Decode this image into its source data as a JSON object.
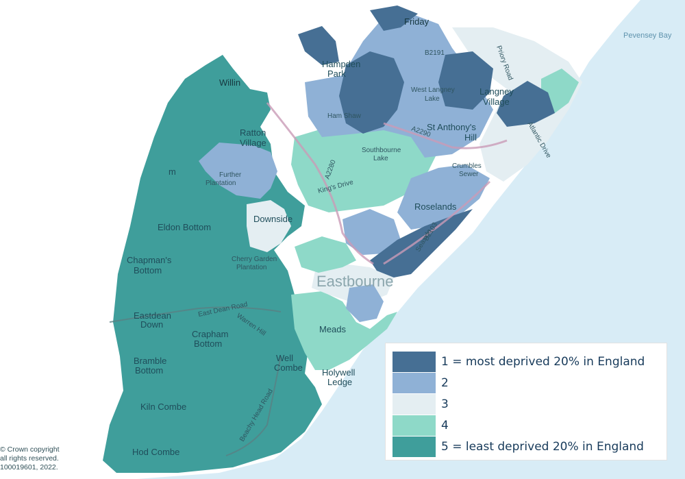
{
  "colors": {
    "q1": "#466f94",
    "q2": "#8fb1d6",
    "q3": "#e4eef2",
    "q4": "#8ed9c8",
    "q5": "#3f9e9b",
    "sea": "#d8ecf6",
    "land": "#ffffff"
  },
  "places": {
    "pevensey_bay": "Pevensey Bay",
    "friday": "Friday",
    "hampden": "Hampden",
    "park": "Park",
    "willingdon": "Willin",
    "west_langney": "West Langney",
    "lake": "Lake",
    "langney": "Langney",
    "village": "Village",
    "ham_shaw": "Ham Shaw",
    "st_anthonys": "St Anthony's",
    "hill": "Hill",
    "ratton": "Ratton",
    "ratton_village": "Village",
    "southbourne": "Southbourne",
    "southbourne_lake": "Lake",
    "crumbles": "Crumbles",
    "sewer": "Sewer",
    "further": "Further",
    "plantation": "Plantation",
    "roselands": "Roselands",
    "downside": "Downside",
    "eldon_bottom": "Eldon Bottom",
    "chapmans": "Chapman's",
    "chapmans_bottom": "Bottom",
    "cherry_garden": "Cherry Garden",
    "cherry_plantation": "Plantation",
    "eastbourne": "Eastbourne",
    "eastdean": "Eastdean",
    "down": "Down",
    "meads": "Meads",
    "crapham": "Crapham",
    "crapham_bottom": "Bottom",
    "well": "Well",
    "combe": "Combe",
    "bramble": "Bramble",
    "bramble_bottom": "Bottom",
    "holywell": "Holywell",
    "ledge": "Ledge",
    "kiln_combe": "Kiln Combe",
    "hod_combe": "Hod Combe",
    "m_label": "m"
  },
  "roads": {
    "a2280": "A2280",
    "a2290": "A2290",
    "b2191": "B2191",
    "b2103": "B2103",
    "kings_drive": "King's Drive",
    "seaside": "Seaside",
    "east_dean_road": "East Dean Road",
    "warren_hill": "Warren Hill",
    "beachy_head_road": "Beachy Head Road",
    "priory_road": "Priory Road",
    "atlantic_drive": "Atlantic Drive"
  },
  "legend": [
    {
      "label": "1 = most deprived 20% in England",
      "color": "#466f94"
    },
    {
      "label": "2",
      "color": "#8fb1d6"
    },
    {
      "label": "3",
      "color": "#e4eef2"
    },
    {
      "label": "4",
      "color": "#8ed9c8"
    },
    {
      "label": "5 = least deprived 20% in England",
      "color": "#3f9e9b"
    }
  ],
  "copyright": {
    "line1": "© Crown copyright",
    "line2": "all rights reserved.",
    "line3": "100019601, 2022."
  }
}
